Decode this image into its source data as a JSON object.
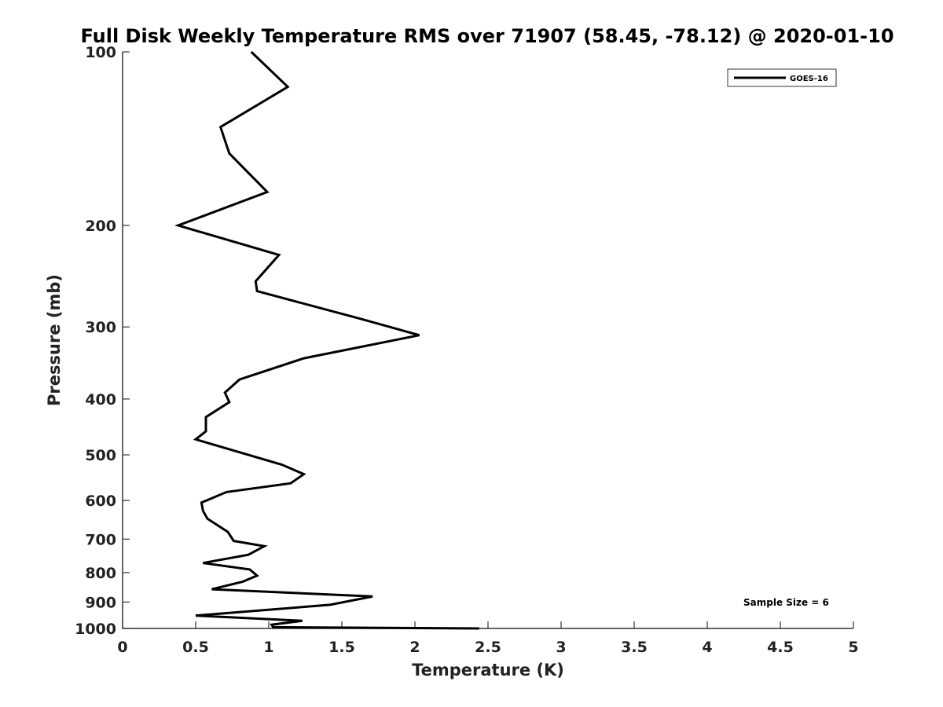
{
  "chart_data": {
    "type": "line",
    "title": "Full Disk Weekly Temperature RMS over 71907 (58.45, -78.12) @ 2020-01-10",
    "xlabel": "Temperature (K)",
    "ylabel": "Pressure (mb)",
    "xlim": [
      0,
      5
    ],
    "ylim": [
      1000,
      100
    ],
    "y_scale": "log",
    "y_inverted": true,
    "xticks": [
      "0",
      "0.5",
      "1",
      "1.5",
      "2",
      "2.5",
      "3",
      "3.5",
      "4",
      "4.5",
      "5"
    ],
    "yticks": [
      "100",
      "200",
      "300",
      "400",
      "500",
      "600",
      "700",
      "800",
      "900",
      "1000"
    ],
    "grid": false,
    "legend_position": "top-right",
    "line_color": "#000000",
    "series": [
      {
        "name": "GOES-16",
        "x": [
          0.88,
          1.13,
          0.67,
          0.73,
          0.99,
          0.38,
          1.07,
          0.91,
          0.92,
          1.62,
          2.03,
          1.24,
          0.8,
          0.7,
          0.73,
          0.57,
          0.57,
          0.5,
          1.09,
          1.24,
          1.15,
          0.71,
          0.54,
          0.55,
          0.58,
          0.72,
          0.76,
          0.97,
          0.86,
          0.55,
          0.87,
          0.92,
          0.82,
          0.61,
          1.71,
          1.42,
          0.5,
          1.23,
          1.02,
          1.03,
          2.44
        ],
        "y": [
          100,
          115,
          135,
          150,
          175,
          200,
          225,
          250,
          260,
          290,
          310,
          340,
          370,
          390,
          405,
          430,
          455,
          470,
          520,
          540,
          560,
          580,
          605,
          625,
          645,
          680,
          705,
          720,
          745,
          770,
          790,
          810,
          830,
          855,
          880,
          910,
          950,
          970,
          985,
          995,
          1000
        ]
      }
    ],
    "annotation": "Sample Size = 6"
  }
}
